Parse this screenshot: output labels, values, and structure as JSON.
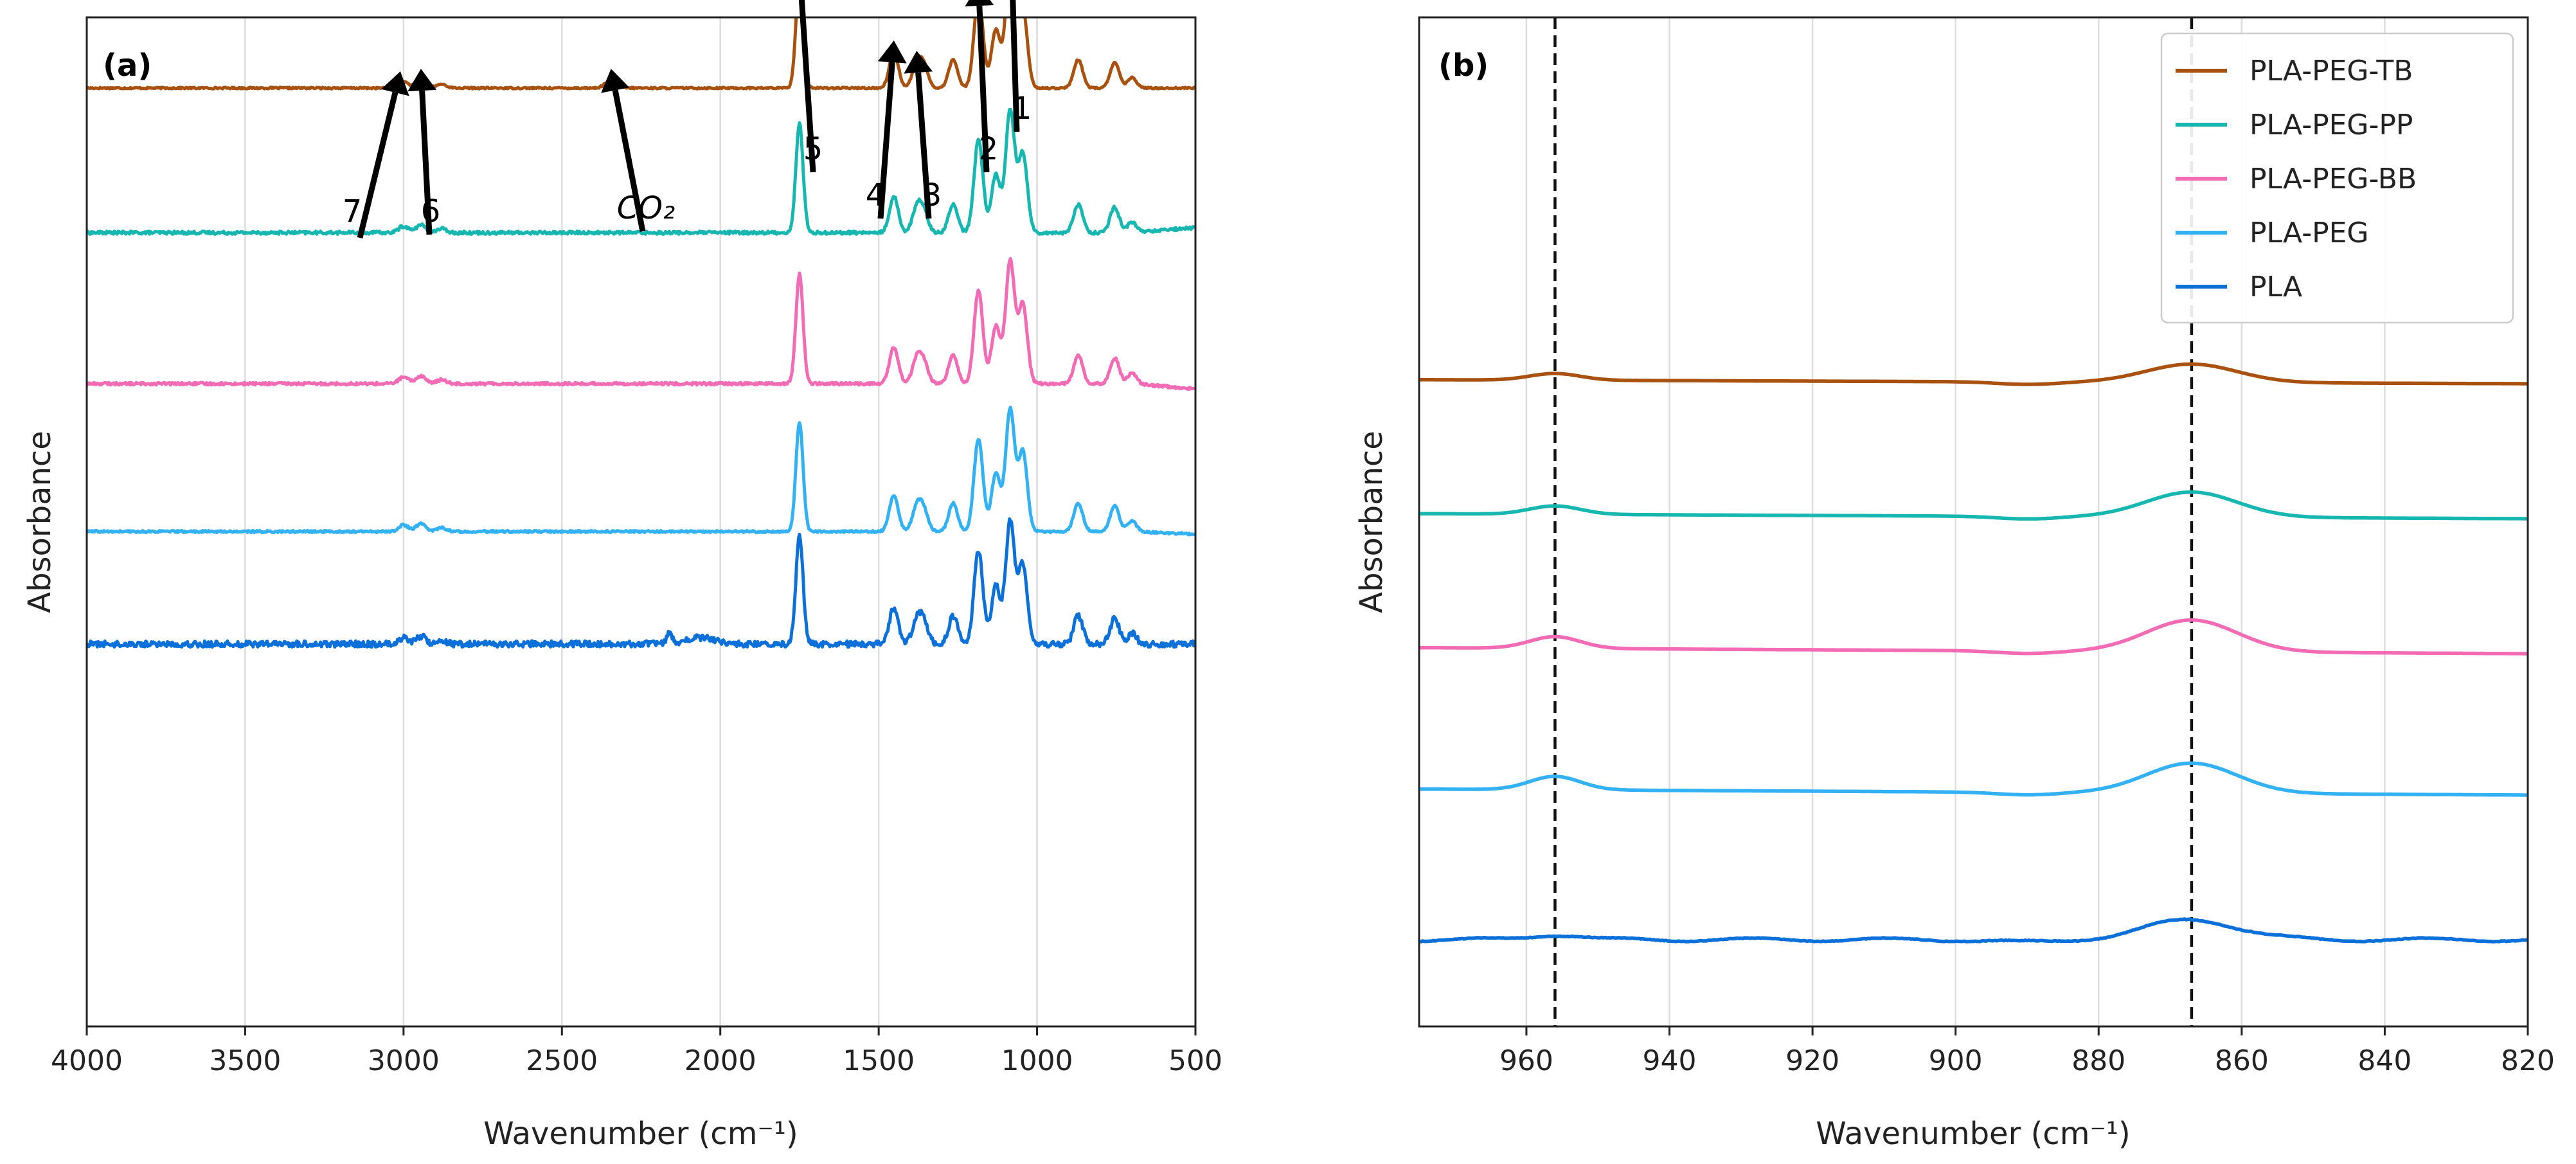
{
  "chart_data": [
    {
      "type": "line",
      "panel_label": "(a)",
      "xlabel": "Wavenumber (cm⁻¹)",
      "ylabel": "Absorbance",
      "xlim": [
        4000,
        500
      ],
      "xticks": [
        4000,
        3500,
        3000,
        2500,
        2000,
        1500,
        1000,
        500
      ],
      "grid": "vertical",
      "y_ticks_visible": false,
      "series": [
        {
          "name": "PLA-PEG-TB",
          "color": "#a9510f",
          "offset": 4,
          "noise": 0.003,
          "baseline_slope": 0.0,
          "end_rise": 0.0
        },
        {
          "name": "PLA-PEG-PP",
          "color": "#17b7b1",
          "offset": 3,
          "noise": 0.006,
          "baseline_slope": 0.0,
          "end_rise": 0.04
        },
        {
          "name": "PLA-PEG-BB",
          "color": "#f26bb4",
          "offset": 2,
          "noise": 0.005,
          "baseline_slope": 0.0,
          "end_rise": -0.04
        },
        {
          "name": "PLA-PEG",
          "color": "#33b1f5",
          "offset": 1,
          "noise": 0.004,
          "baseline_slope": 0.0,
          "end_rise": -0.02
        },
        {
          "name": "PLA",
          "color": "#0b70d9",
          "offset": 0,
          "noise": 0.012,
          "baseline_slope": 0.0,
          "end_rise": 0.0
        }
      ],
      "peaks": [
        {
          "center": 3000,
          "height": 0.05
        },
        {
          "center": 2945,
          "height": 0.06
        },
        {
          "center": 2880,
          "height": 0.03
        },
        {
          "center": 1750,
          "height": 0.85
        },
        {
          "center": 1452,
          "height": 0.28
        },
        {
          "center": 1380,
          "height": 0.18
        },
        {
          "center": 1358,
          "height": 0.16
        },
        {
          "center": 1265,
          "height": 0.22
        },
        {
          "center": 1185,
          "height": 0.72
        },
        {
          "center": 1130,
          "height": 0.45
        },
        {
          "center": 1085,
          "height": 0.95
        },
        {
          "center": 1045,
          "height": 0.62
        },
        {
          "center": 870,
          "height": 0.22
        },
        {
          "center": 755,
          "height": 0.2
        },
        {
          "center": 700,
          "height": 0.08
        }
      ],
      "annotations": [
        {
          "label": "1",
          "x": 1085
        },
        {
          "label": "2",
          "x": 1185
        },
        {
          "label": "3",
          "x": 1380
        },
        {
          "label": "4",
          "x": 1452
        },
        {
          "label": "5",
          "x": 1750
        },
        {
          "label": "CO₂",
          "x": 2345
        },
        {
          "label": "6",
          "x": 2945
        },
        {
          "label": "7",
          "x": 3010
        }
      ]
    },
    {
      "type": "line",
      "panel_label": "(b)",
      "xlabel": "Wavenumber (cm⁻¹)",
      "ylabel": "Absorbance",
      "xlim": [
        975,
        820
      ],
      "xticks": [
        960,
        940,
        920,
        900,
        880,
        860,
        840,
        820
      ],
      "grid": "vertical",
      "y_ticks_visible": false,
      "vlines": [
        956,
        867
      ],
      "legend": {
        "location": "top-right",
        "entries": [
          "PLA-PEG-TB",
          "PLA-PEG-PP",
          "PLA-PEG-BB",
          "PLA-PEG",
          "PLA"
        ]
      },
      "series": [
        {
          "name": "PLA-PEG-TB",
          "color": "#a9510f",
          "offset": 4,
          "peak_956": 0.04,
          "peak_867": 0.11,
          "end_slope": 0.04
        },
        {
          "name": "PLA-PEG-PP",
          "color": "#17b7b1",
          "offset": 3,
          "peak_956": 0.05,
          "peak_867": 0.15,
          "end_slope": 0.05
        },
        {
          "name": "PLA-PEG-BB",
          "color": "#f26bb4",
          "offset": 2,
          "peak_956": 0.07,
          "peak_867": 0.19,
          "end_slope": 0.06
        },
        {
          "name": "PLA-PEG",
          "color": "#33b1f5",
          "offset": 1,
          "peak_956": 0.08,
          "peak_867": 0.18,
          "end_slope": 0.06
        },
        {
          "name": "PLA",
          "color": "#0b70d9",
          "offset": 0,
          "peak_956": 0.03,
          "peak_867": 0.12,
          "end_slope": 0.0
        }
      ]
    }
  ]
}
